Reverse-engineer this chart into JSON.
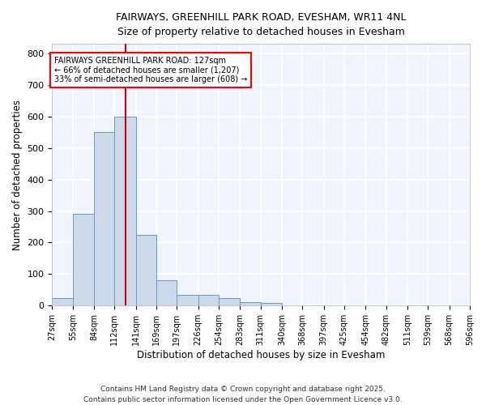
{
  "title1": "FAIRWAYS, GREENHILL PARK ROAD, EVESHAM, WR11 4NL",
  "title2": "Size of property relative to detached houses in Evesham",
  "xlabel": "Distribution of detached houses by size in Evesham",
  "ylabel": "Number of detached properties",
  "bar_color": "#ccd9e8",
  "bar_edge_color": "#6699cc",
  "bg_color": "#f0f4ff",
  "grid_color": "#ffffff",
  "red_line_x": 127,
  "annotation_text": "FAIRWAYS GREENHILL PARK ROAD: 127sqm\n← 66% of detached houses are smaller (1,207)\n33% of semi-detached houses are larger (608) →",
  "bins": [
    27,
    55,
    84,
    112,
    141,
    169,
    197,
    226,
    254,
    283,
    311,
    340,
    368,
    397,
    425,
    454,
    482,
    511,
    539,
    568,
    596
  ],
  "bar_heights": [
    25,
    290,
    550,
    600,
    225,
    80,
    35,
    35,
    25,
    10,
    8,
    0,
    0,
    0,
    0,
    0,
    0,
    0,
    0,
    0
  ],
  "ylim": [
    0,
    830
  ],
  "yticks": [
    0,
    100,
    200,
    300,
    400,
    500,
    600,
    700,
    800
  ],
  "footer1": "Contains HM Land Registry data © Crown copyright and database right 2025.",
  "footer2": "Contains public sector information licensed under the Open Government Licence v3.0."
}
